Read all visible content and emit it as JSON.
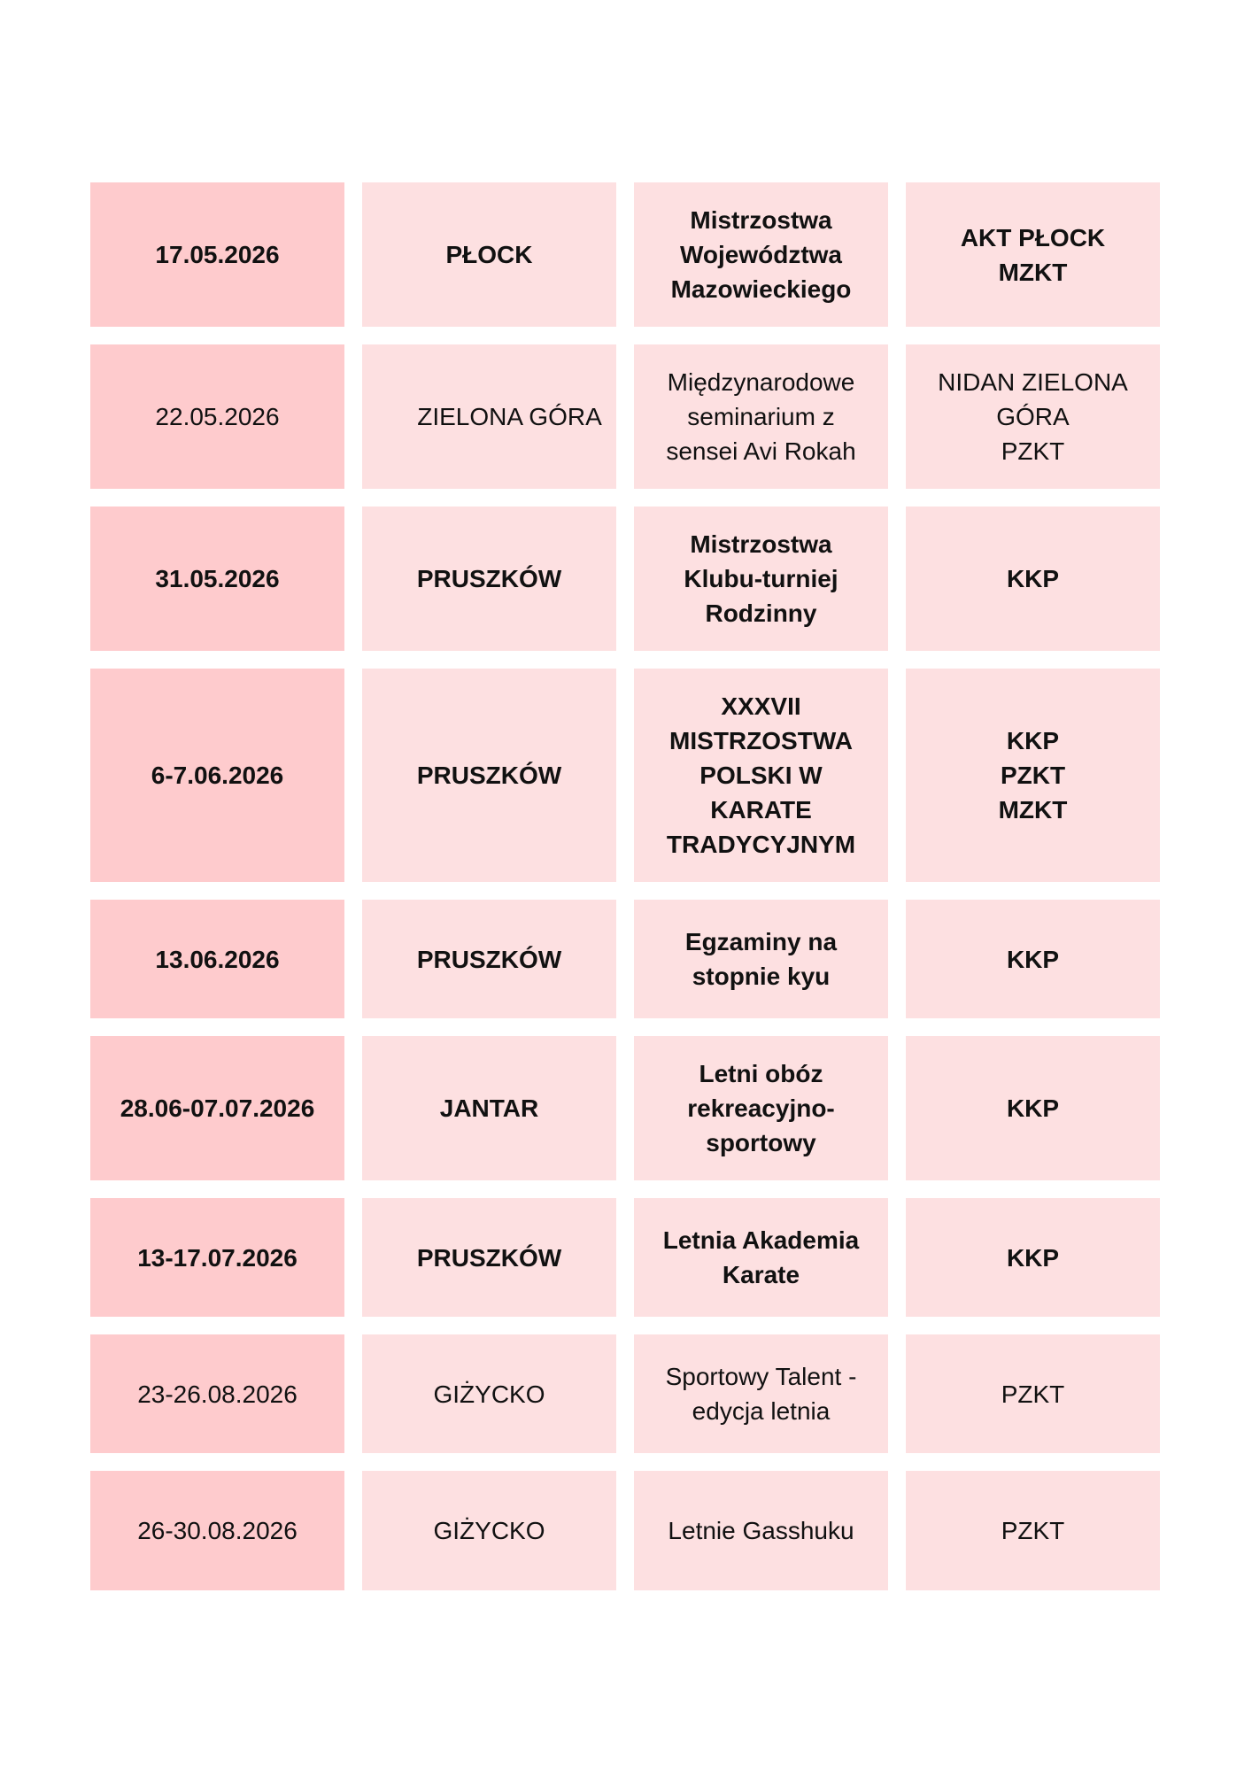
{
  "rows": [
    {
      "bold": true,
      "date": "17.05.2026",
      "place": "PŁOCK",
      "event": "Mistrzostwa\nWojewództwa\nMazowieckiego",
      "organizer": "AKT PŁOCK\nMZKT"
    },
    {
      "bold": false,
      "date": "22.05.2026",
      "place": "ZIELONA GÓRA",
      "event": "Międzynarodowe\nseminarium z\nsensei Avi Rokah",
      "organizer": "NIDAN ZIELONA\nGÓRA\nPZKT"
    },
    {
      "bold": true,
      "date": "31.05.2026",
      "place": "PRUSZKÓW",
      "event": "Mistrzostwa\nKlubu-turniej\nRodzinny",
      "organizer": "KKP"
    },
    {
      "bold": true,
      "date": "6-7.06.2026",
      "place": "PRUSZKÓW",
      "event": "XXXVII\nMISTRZOSTWA\nPOLSKI W\nKARATE\nTRADYCYJNYM",
      "organizer": "KKP\nPZKT\nMZKT"
    },
    {
      "bold": true,
      "date": "13.06.2026",
      "place": "PRUSZKÓW",
      "event": "Egzaminy na\nstopnie kyu",
      "organizer": "KKP"
    },
    {
      "bold": true,
      "date": "28.06-07.07.2026",
      "place": "JANTAR",
      "event": "Letni obóz\nrekreacyjno-\nsportowy",
      "organizer": "KKP"
    },
    {
      "bold": true,
      "date": "13-17.07.2026",
      "place": "PRUSZKÓW",
      "event": "Letnia Akademia\nKarate",
      "organizer": "KKP"
    },
    {
      "bold": false,
      "date": "23-26.08.2026",
      "place": "GIŻYCKO",
      "event": "Sportowy Talent -\nedycja letnia",
      "organizer": "PZKT"
    },
    {
      "bold": false,
      "date": "26-30.08.2026",
      "place": "GIŻYCKO",
      "event": "Letnie Gasshuku",
      "organizer": "PZKT"
    }
  ],
  "colors": {
    "date_cell": "#fecbcd",
    "other_cell": "#fde0e1"
  }
}
